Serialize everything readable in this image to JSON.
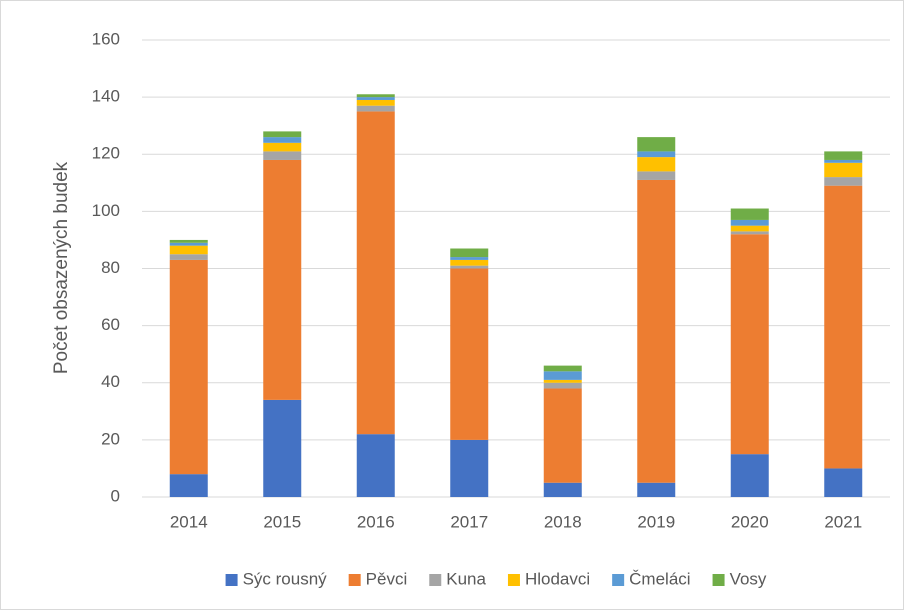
{
  "chart_data": {
    "type": "stacked_bar",
    "y_label": "Počet obsazených budek",
    "categories": [
      "2014",
      "2015",
      "2016",
      "2017",
      "2018",
      "2019",
      "2020",
      "2021"
    ],
    "series": [
      {
        "name": "Sýc rousný",
        "color": "#4472c4",
        "values": [
          8,
          34,
          22,
          20,
          5,
          5,
          15,
          10
        ]
      },
      {
        "name": "Pěvci",
        "color": "#ed7d31",
        "values": [
          75,
          84,
          113,
          60,
          33,
          106,
          77,
          99
        ]
      },
      {
        "name": "Kuna",
        "color": "#a5a5a5",
        "values": [
          2,
          3,
          2,
          1,
          2,
          3,
          1,
          3
        ]
      },
      {
        "name": "Hlodavci",
        "color": "#ffc000",
        "values": [
          3,
          3,
          2,
          2,
          1,
          5,
          2,
          5
        ]
      },
      {
        "name": "Čmeláci",
        "color": "#5b9bd5",
        "values": [
          1,
          2,
          1,
          1,
          3,
          2,
          2,
          1
        ]
      },
      {
        "name": "Vosy",
        "color": "#70ad47",
        "values": [
          1,
          2,
          1,
          3,
          2,
          5,
          4,
          3
        ]
      }
    ],
    "ylim": [
      0,
      160
    ],
    "yticks": [
      0,
      20,
      40,
      60,
      80,
      100,
      120,
      140,
      160
    ],
    "grid": true,
    "legend": "bottom"
  }
}
